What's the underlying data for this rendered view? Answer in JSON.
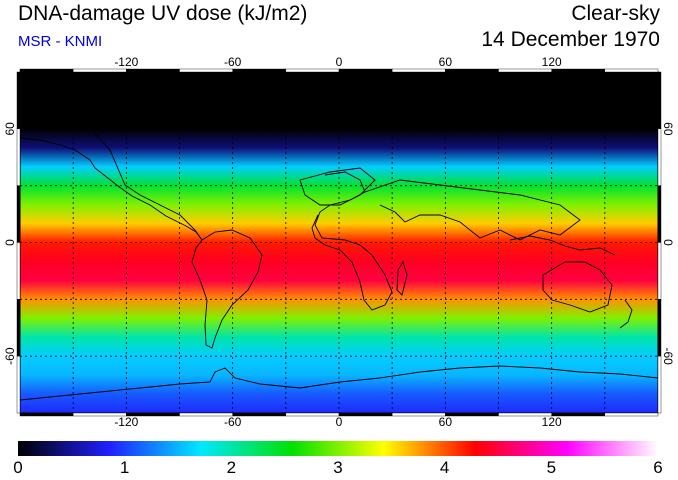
{
  "header": {
    "title": "DNA-damage UV dose (kJ/m2)",
    "credit": "MSR - KNMI",
    "condition": "Clear-sky",
    "date": "14 December 1970"
  },
  "map": {
    "projection": "equirectangular",
    "lon_range": [
      -180,
      180
    ],
    "lat_range": [
      -90,
      90
    ],
    "lon_ticks": [
      "-120",
      "-60",
      "0",
      "60",
      "120"
    ],
    "lon_tick_values": [
      -120,
      -60,
      0,
      60,
      120
    ],
    "lat_ticks": [
      "60",
      "0",
      "-60"
    ],
    "lat_tick_values": [
      60,
      0,
      -60
    ],
    "gridlines": "dashed every 30 degrees",
    "field_profile": {
      "description": "approximate zonal-mean UV dose by latitude (kJ/m2)",
      "lat": [
        90,
        60,
        50,
        40,
        30,
        20,
        10,
        0,
        -10,
        -20,
        -30,
        -40,
        -50,
        -60,
        -70,
        -80,
        -90
      ],
      "dose": [
        0.0,
        0.0,
        0.4,
        1.6,
        2.4,
        3.0,
        3.6,
        4.2,
        4.4,
        4.5,
        3.8,
        3.0,
        2.0,
        1.6,
        1.5,
        1.1,
        0.9
      ]
    }
  },
  "colorbar": {
    "labels": [
      "0",
      "1",
      "2",
      "3",
      "4",
      "5",
      "6"
    ],
    "range": [
      0,
      6
    ],
    "colors": [
      "#000000",
      "#2020ff",
      "#00e8ff",
      "#00e000",
      "#ffff00",
      "#ff0000",
      "#ff00ff",
      "#ffffff"
    ]
  }
}
